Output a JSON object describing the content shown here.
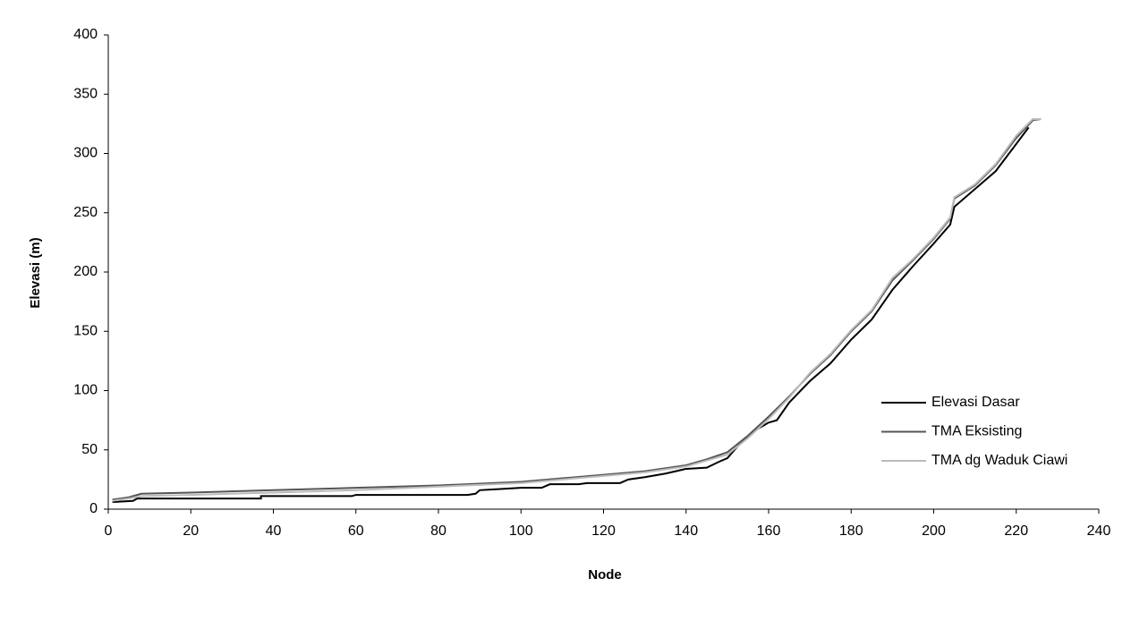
{
  "chart_data": {
    "type": "line",
    "xlabel": "Node",
    "ylabel": "Elevasi (m)",
    "xlim": [
      0,
      240
    ],
    "xticks": [
      0,
      20,
      40,
      60,
      80,
      100,
      120,
      140,
      160,
      180,
      200,
      220,
      240
    ],
    "ylim": [
      0,
      400
    ],
    "yticks": [
      0,
      50,
      100,
      150,
      200,
      250,
      300,
      350,
      400
    ],
    "grid": false,
    "legend": "right",
    "series": [
      {
        "name": "Elevasi Dasar",
        "color": "#000000",
        "x": [
          1,
          6,
          7,
          37,
          37,
          59,
          60,
          87,
          89,
          90,
          95,
          100,
          105,
          107,
          114,
          116,
          124,
          126,
          130,
          135,
          140,
          145,
          148,
          150,
          153,
          156,
          160,
          162,
          165,
          170,
          175,
          180,
          185,
          190,
          195,
          200,
          204,
          205,
          210,
          215,
          220,
          223
        ],
        "values": [
          6,
          7,
          9,
          9,
          11,
          11,
          12,
          12,
          13,
          16,
          17,
          18,
          18,
          21,
          21,
          22,
          22,
          25,
          27,
          30,
          34,
          35,
          40,
          43,
          55,
          65,
          73,
          75,
          90,
          108,
          123,
          143,
          160,
          185,
          205,
          224,
          240,
          255,
          270,
          285,
          308,
          322
        ]
      },
      {
        "name": "TMA Eksisting",
        "color": "#555555",
        "x": [
          1,
          5,
          8,
          20,
          40,
          60,
          80,
          100,
          110,
          120,
          130,
          140,
          145,
          150,
          155,
          160,
          165,
          170,
          175,
          180,
          185,
          190,
          195,
          200,
          204,
          205,
          210,
          215,
          220,
          224,
          226
        ],
        "values": [
          8,
          10,
          13,
          14,
          16,
          18,
          20,
          23,
          26,
          29,
          32,
          37,
          42,
          48,
          62,
          78,
          95,
          114,
          130,
          150,
          167,
          193,
          210,
          228,
          245,
          262,
          273,
          290,
          313,
          328,
          329
        ]
      },
      {
        "name": "TMA dg Waduk Ciawi",
        "color": "#bbbbbb",
        "x": [
          1,
          5,
          8,
          20,
          40,
          60,
          80,
          100,
          110,
          120,
          130,
          140,
          145,
          150,
          155,
          160,
          165,
          170,
          175,
          180,
          185,
          190,
          195,
          200,
          204,
          205,
          210,
          215,
          220,
          224,
          226
        ],
        "values": [
          7,
          9,
          11,
          12,
          14,
          16,
          19,
          22,
          25,
          28,
          31,
          36,
          41,
          46,
          60,
          76,
          94,
          115,
          131,
          151,
          168,
          195,
          211,
          229,
          246,
          263,
          274,
          291,
          315,
          329,
          329
        ]
      }
    ]
  }
}
